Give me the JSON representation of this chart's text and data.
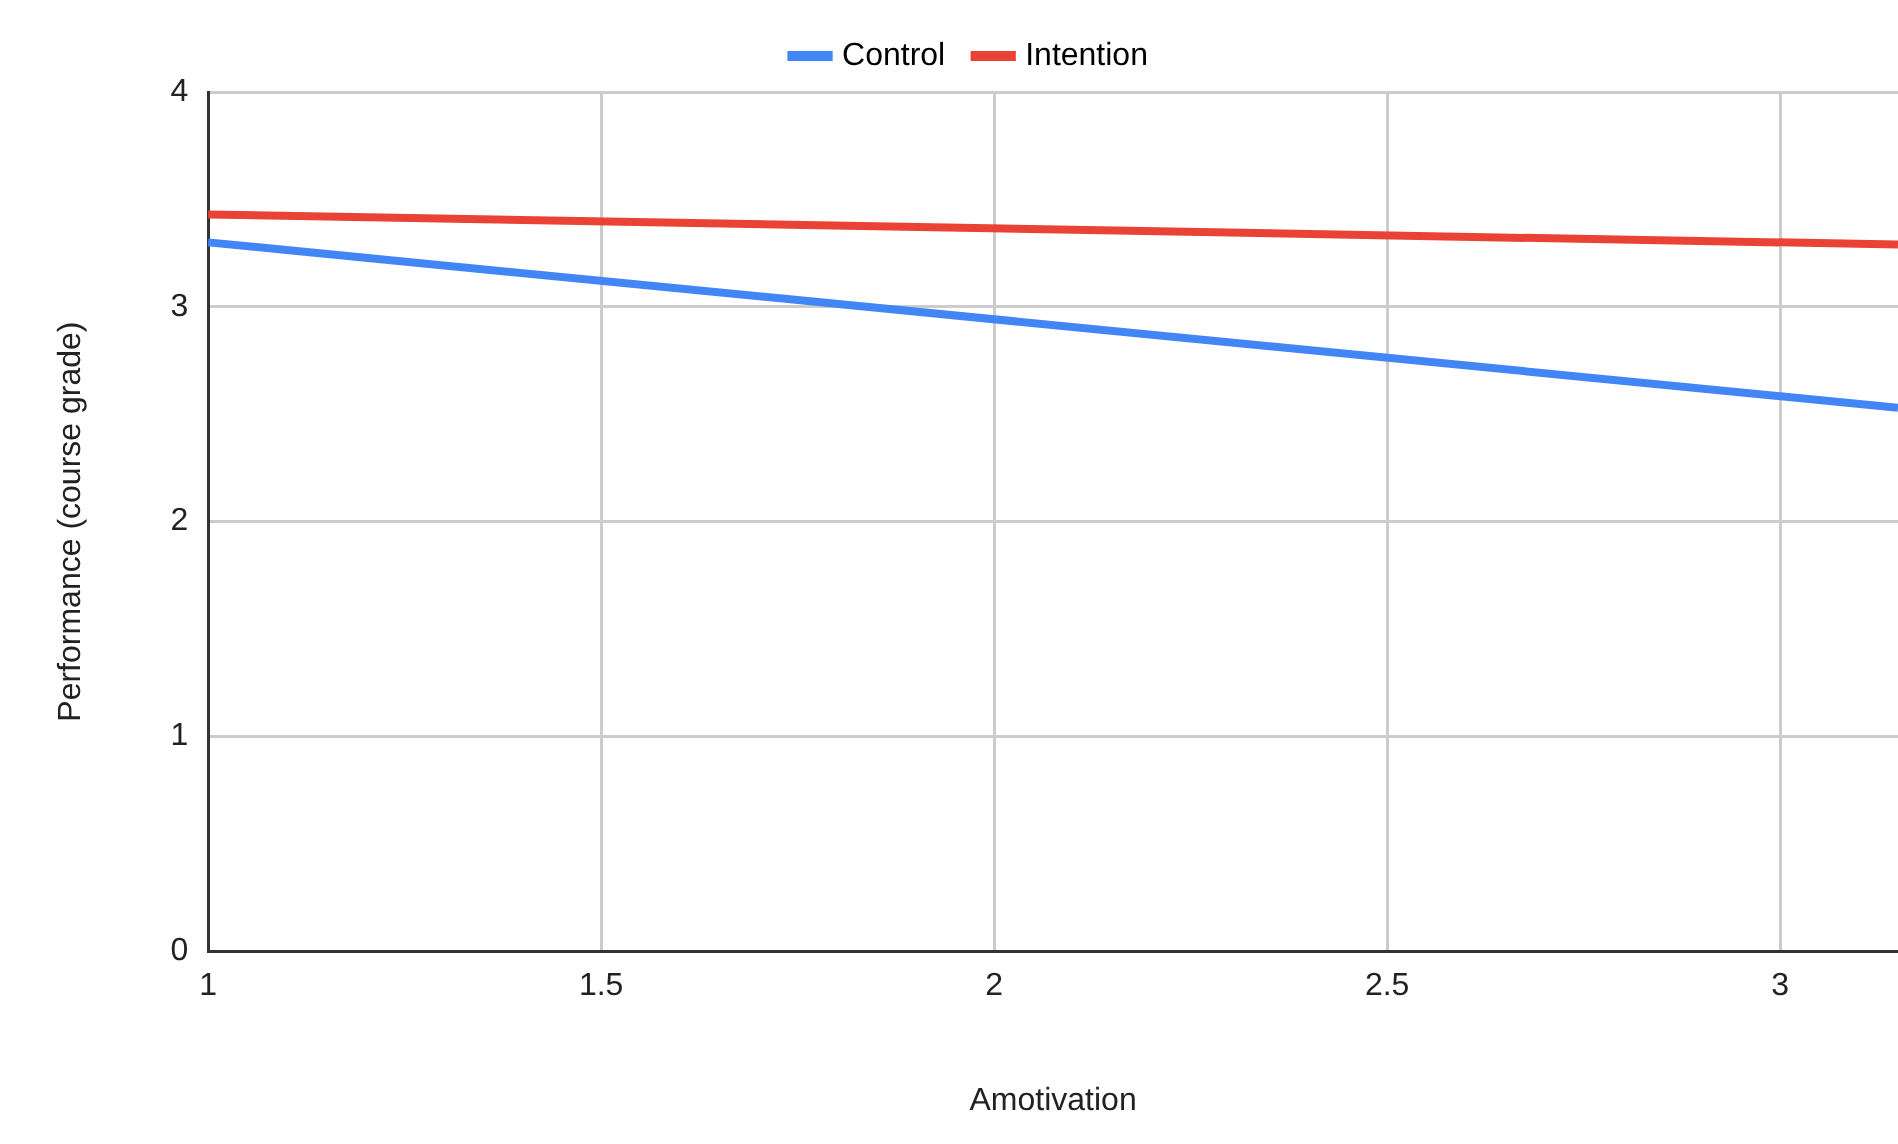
{
  "chart_data": {
    "type": "line",
    "xlabel": "Amotivation",
    "ylabel": "Performance (course grade)",
    "x": [
      1,
      3.15
    ],
    "xlim": [
      1,
      3.15
    ],
    "xticks": [
      1,
      1.5,
      2,
      2.5,
      3
    ],
    "ylim": [
      0,
      4
    ],
    "yticks": [
      0,
      1,
      2,
      3,
      4
    ],
    "grid": true,
    "legend": "top",
    "marker": "none",
    "series": [
      {
        "name": "Control",
        "color": "#4285f4",
        "values": [
          3.3,
          2.53
        ]
      },
      {
        "name": "Intention",
        "color": "#ea4335",
        "values": [
          3.43,
          3.29
        ]
      }
    ]
  }
}
